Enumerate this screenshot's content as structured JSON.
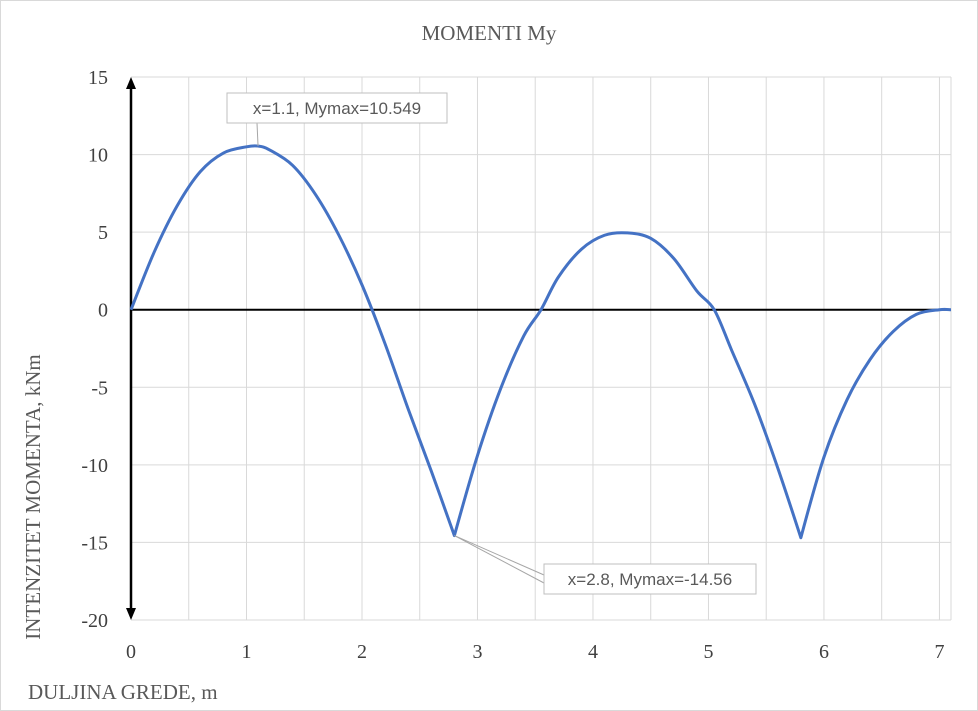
{
  "chart_data": {
    "type": "line",
    "title": "MOMENTI My",
    "xlabel": "DULJINA GREDE, m",
    "ylabel": "INTENZITET MOMENTA, kNm",
    "xlim": [
      0,
      7.1
    ],
    "ylim": [
      -20,
      15
    ],
    "x_ticks": [
      "0",
      "1",
      "2",
      "3",
      "4",
      "5",
      "6",
      "7"
    ],
    "y_ticks": [
      "15",
      "10",
      "5",
      "0",
      "-5",
      "-10",
      "-15",
      "-20"
    ],
    "grid": true,
    "legend": "none",
    "line_color": "#4472c4",
    "series": [
      {
        "x": [
          0,
          0.2,
          0.4,
          0.6,
          0.8,
          1.0,
          1.1,
          1.2,
          1.4,
          1.6,
          1.8,
          2.0,
          2.2,
          2.4,
          2.6,
          2.8,
          3.0,
          3.2,
          3.4,
          3.55,
          3.7,
          3.9,
          4.1,
          4.3,
          4.5,
          4.7,
          4.9,
          5.05,
          5.2,
          5.4,
          5.6,
          5.8,
          6.0,
          6.2,
          6.4,
          6.6,
          6.8,
          7.0,
          7.1
        ],
        "y": [
          0,
          3.7,
          6.7,
          8.9,
          10.1,
          10.5,
          10.549,
          10.3,
          9.3,
          7.4,
          4.8,
          1.6,
          -2.2,
          -6.4,
          -10.4,
          -14.56,
          -9.4,
          -5.1,
          -1.7,
          0,
          2.1,
          3.9,
          4.8,
          4.95,
          4.6,
          3.3,
          1.2,
          0,
          -2.6,
          -6.1,
          -10.2,
          -14.7,
          -9.5,
          -5.8,
          -3.2,
          -1.4,
          -0.3,
          0,
          0
        ]
      }
    ],
    "annotations": [
      {
        "text": "x=1.1, Mymax=10.549",
        "x": 1.1,
        "y": 10.549
      },
      {
        "text": "x=2.8, Mymax=-14.56",
        "x": 2.8,
        "y": -14.56
      }
    ]
  }
}
